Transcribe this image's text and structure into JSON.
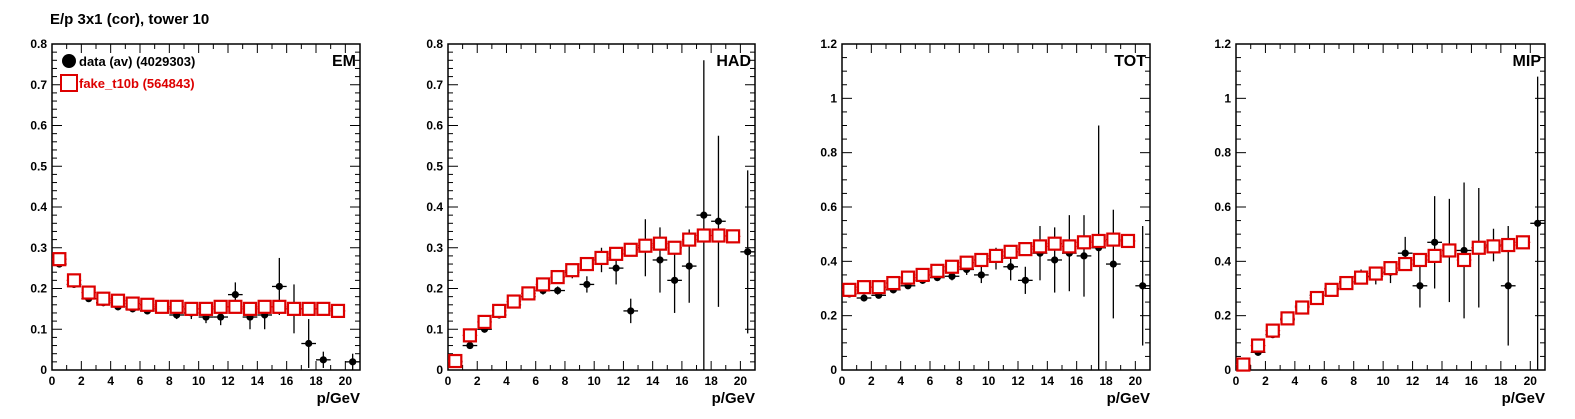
{
  "title": "E/p 3x1 (cor), tower 10",
  "chart_data": [
    {
      "type": "scatter",
      "label": "EM",
      "xlabel": "p/GeV",
      "xlim": [
        0,
        21
      ],
      "ylim": [
        0,
        0.8
      ],
      "xticks": [
        0,
        2,
        4,
        6,
        8,
        10,
        12,
        14,
        16,
        18,
        20
      ],
      "yticks": [
        0,
        0.1,
        0.2,
        0.3,
        0.4,
        0.5,
        0.6,
        0.7,
        0.8
      ],
      "legend": [
        {
          "name": "data (av) (4029303)",
          "marker": "filled-circle",
          "color": "#000000"
        },
        {
          "name": "fake_t10b (564843)",
          "marker": "open-square",
          "color": "#dd0000"
        }
      ],
      "series": [
        {
          "name": "data (av) (4029303)",
          "marker": "filled-circle",
          "color": "#000000",
          "x": [
            0.5,
            1.5,
            2.5,
            3.5,
            4.5,
            5.5,
            6.5,
            7.5,
            8.5,
            9.5,
            10.5,
            11.5,
            12.5,
            13.5,
            14.5,
            15.5,
            16.5,
            17.5,
            18.5,
            20.5
          ],
          "y": [
            0.26,
            0.21,
            0.175,
            0.165,
            0.155,
            0.15,
            0.145,
            0.15,
            0.135,
            0.14,
            0.13,
            0.13,
            0.185,
            0.13,
            0.135,
            0.205,
            0.15,
            0.065,
            0.025,
            0.02
          ],
          "err": [
            0.005,
            0.005,
            0.005,
            0.006,
            0.006,
            0.007,
            0.008,
            0.01,
            0.01,
            0.015,
            0.015,
            0.02,
            0.03,
            0.03,
            0.035,
            0.07,
            0.06,
            0.06,
            0.02,
            0.02
          ]
        },
        {
          "name": "fake_t10b (564843)",
          "marker": "open-square",
          "color": "#dd0000",
          "x": [
            0.5,
            1.5,
            2.5,
            3.5,
            4.5,
            5.5,
            6.5,
            7.5,
            8.5,
            9.5,
            10.5,
            11.5,
            12.5,
            13.5,
            14.5,
            15.5,
            16.5,
            17.5,
            18.5,
            19.5
          ],
          "y": [
            0.272,
            0.22,
            0.19,
            0.175,
            0.17,
            0.163,
            0.16,
            0.155,
            0.155,
            0.15,
            0.15,
            0.155,
            0.155,
            0.15,
            0.155,
            0.155,
            0.15,
            0.15,
            0.15,
            0.145
          ]
        }
      ]
    },
    {
      "type": "scatter",
      "label": "HAD",
      "xlabel": "p/GeV",
      "xlim": [
        0,
        21
      ],
      "ylim": [
        0,
        0.8
      ],
      "xticks": [
        0,
        2,
        4,
        6,
        8,
        10,
        12,
        14,
        16,
        18,
        20
      ],
      "yticks": [
        0,
        0.1,
        0.2,
        0.3,
        0.4,
        0.5,
        0.6,
        0.7,
        0.8
      ],
      "series": [
        {
          "name": "data (av) (4029303)",
          "marker": "filled-circle",
          "color": "#000000",
          "x": [
            0.5,
            1.5,
            2.5,
            3.5,
            4.5,
            5.5,
            6.5,
            7.5,
            8.5,
            9.5,
            10.5,
            11.5,
            12.5,
            13.5,
            14.5,
            15.5,
            16.5,
            17.5,
            18.5,
            20.5
          ],
          "y": [
            0.02,
            0.06,
            0.1,
            0.135,
            0.16,
            0.18,
            0.195,
            0.195,
            0.24,
            0.21,
            0.27,
            0.25,
            0.145,
            0.3,
            0.27,
            0.22,
            0.255,
            0.38,
            0.365,
            0.29
          ],
          "err": [
            0.005,
            0.005,
            0.005,
            0.006,
            0.007,
            0.008,
            0.01,
            0.01,
            0.015,
            0.02,
            0.03,
            0.04,
            0.03,
            0.07,
            0.08,
            0.08,
            0.09,
            0.38,
            0.21,
            0.2
          ]
        },
        {
          "name": "fake_t10b (564843)",
          "marker": "open-square",
          "color": "#dd0000",
          "x": [
            0.5,
            1.5,
            2.5,
            3.5,
            4.5,
            5.5,
            6.5,
            7.5,
            8.5,
            9.5,
            10.5,
            11.5,
            12.5,
            13.5,
            14.5,
            15.5,
            16.5,
            17.5,
            18.5,
            19.5
          ],
          "y": [
            0.022,
            0.085,
            0.118,
            0.145,
            0.168,
            0.188,
            0.21,
            0.228,
            0.245,
            0.26,
            0.275,
            0.285,
            0.295,
            0.305,
            0.31,
            0.3,
            0.32,
            0.33,
            0.33,
            0.328
          ]
        }
      ]
    },
    {
      "type": "scatter",
      "label": "TOT",
      "xlabel": "p/GeV",
      "xlim": [
        0,
        21
      ],
      "ylim": [
        0,
        1.2
      ],
      "xticks": [
        0,
        2,
        4,
        6,
        8,
        10,
        12,
        14,
        16,
        18,
        20
      ],
      "yticks": [
        0,
        0.2,
        0.4,
        0.6,
        0.8,
        1,
        1.2
      ],
      "series": [
        {
          "name": "data (av) (4029303)",
          "marker": "filled-circle",
          "color": "#000000",
          "x": [
            0.5,
            1.5,
            2.5,
            3.5,
            4.5,
            5.5,
            6.5,
            7.5,
            8.5,
            9.5,
            10.5,
            11.5,
            12.5,
            13.5,
            14.5,
            15.5,
            16.5,
            17.5,
            18.5,
            20.5
          ],
          "y": [
            0.28,
            0.265,
            0.275,
            0.295,
            0.31,
            0.33,
            0.34,
            0.345,
            0.37,
            0.35,
            0.41,
            0.38,
            0.33,
            0.43,
            0.405,
            0.43,
            0.42,
            0.45,
            0.39,
            0.31
          ],
          "err": [
            0.005,
            0.005,
            0.006,
            0.006,
            0.007,
            0.008,
            0.01,
            0.015,
            0.02,
            0.03,
            0.04,
            0.05,
            0.05,
            0.1,
            0.12,
            0.14,
            0.15,
            0.45,
            0.2,
            0.22
          ]
        },
        {
          "name": "fake_t10b (564843)",
          "marker": "open-square",
          "color": "#dd0000",
          "x": [
            0.5,
            1.5,
            2.5,
            3.5,
            4.5,
            5.5,
            6.5,
            7.5,
            8.5,
            9.5,
            10.5,
            11.5,
            12.5,
            13.5,
            14.5,
            15.5,
            16.5,
            17.5,
            18.5,
            19.5
          ],
          "y": [
            0.295,
            0.305,
            0.305,
            0.32,
            0.34,
            0.35,
            0.365,
            0.38,
            0.395,
            0.405,
            0.42,
            0.435,
            0.445,
            0.455,
            0.465,
            0.455,
            0.47,
            0.475,
            0.48,
            0.475
          ]
        }
      ]
    },
    {
      "type": "scatter",
      "label": "MIP",
      "xlabel": "p/GeV",
      "xlim": [
        0,
        21
      ],
      "ylim": [
        0,
        1.2
      ],
      "xticks": [
        0,
        2,
        4,
        6,
        8,
        10,
        12,
        14,
        16,
        18,
        20
      ],
      "yticks": [
        0,
        0.2,
        0.4,
        0.6,
        0.8,
        1,
        1.2
      ],
      "series": [
        {
          "name": "data (av) (4029303)",
          "marker": "filled-circle",
          "color": "#000000",
          "x": [
            0.5,
            1.5,
            2.5,
            3.5,
            4.5,
            5.5,
            6.5,
            7.5,
            8.5,
            9.5,
            10.5,
            11.5,
            12.5,
            13.5,
            14.5,
            15.5,
            16.5,
            17.5,
            18.5,
            20.5
          ],
          "y": [
            0.015,
            0.065,
            0.13,
            0.185,
            0.235,
            0.275,
            0.3,
            0.325,
            0.345,
            0.345,
            0.36,
            0.43,
            0.31,
            0.47,
            0.44,
            0.44,
            0.45,
            0.46,
            0.31,
            0.54
          ],
          "err": [
            0.005,
            0.006,
            0.007,
            0.008,
            0.01,
            0.012,
            0.015,
            0.02,
            0.025,
            0.03,
            0.04,
            0.06,
            0.08,
            0.17,
            0.19,
            0.25,
            0.22,
            0.06,
            0.22,
            0.54
          ]
        },
        {
          "name": "fake_t10b (564843)",
          "marker": "open-square",
          "color": "#dd0000",
          "x": [
            0.5,
            1.5,
            2.5,
            3.5,
            4.5,
            5.5,
            6.5,
            7.5,
            8.5,
            9.5,
            10.5,
            11.5,
            12.5,
            13.5,
            14.5,
            15.5,
            16.5,
            17.5,
            18.5,
            19.5
          ],
          "y": [
            0.02,
            0.09,
            0.145,
            0.19,
            0.23,
            0.265,
            0.295,
            0.32,
            0.34,
            0.355,
            0.375,
            0.39,
            0.405,
            0.42,
            0.44,
            0.405,
            0.45,
            0.455,
            0.46,
            0.47
          ]
        }
      ]
    }
  ]
}
